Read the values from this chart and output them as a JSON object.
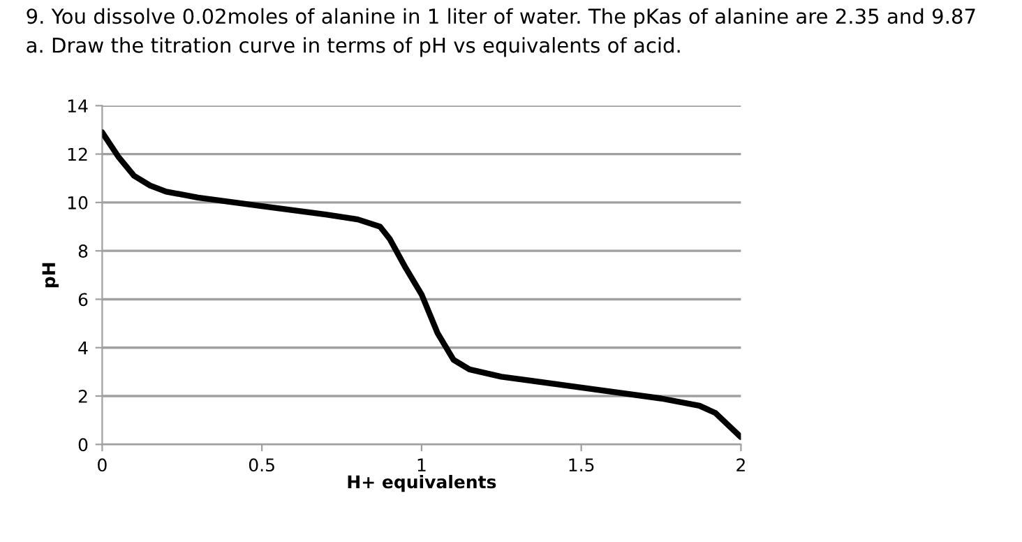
{
  "chart_data": {
    "type": "line",
    "title": "9. You dissolve 0.02moles of alanine in 1 liter of water. The pKas of alanine are 2.35 and 9.87\na. Draw the titration curve in terms of pH vs equivalents of acid.",
    "xlabel": "H+ equivalents",
    "ylabel": "pH",
    "series": [
      {
        "color": "#000000",
        "x": [
          0,
          0.05,
          0.1,
          0.15,
          0.2,
          0.3,
          0.5,
          0.7,
          0.8,
          0.87,
          0.9,
          0.95,
          1.0,
          1.05,
          1.1,
          1.15,
          1.25,
          1.5,
          1.75,
          1.87,
          1.92,
          2.0
        ],
        "values": [
          12.9,
          11.9,
          11.1,
          10.7,
          10.45,
          10.2,
          9.85,
          9.5,
          9.3,
          9.0,
          8.5,
          7.3,
          6.2,
          4.6,
          3.5,
          3.1,
          2.8,
          2.35,
          1.9,
          1.6,
          1.3,
          0.3
        ]
      }
    ],
    "xlim": [
      0,
      2
    ],
    "xticks": [
      0,
      0.5,
      1,
      1.5,
      2
    ],
    "ylim": [
      0,
      14
    ],
    "yticks": [
      0,
      2,
      4,
      6,
      8,
      10,
      12,
      14
    ],
    "grid": "y",
    "marker": "none",
    "line_style": "solid"
  }
}
